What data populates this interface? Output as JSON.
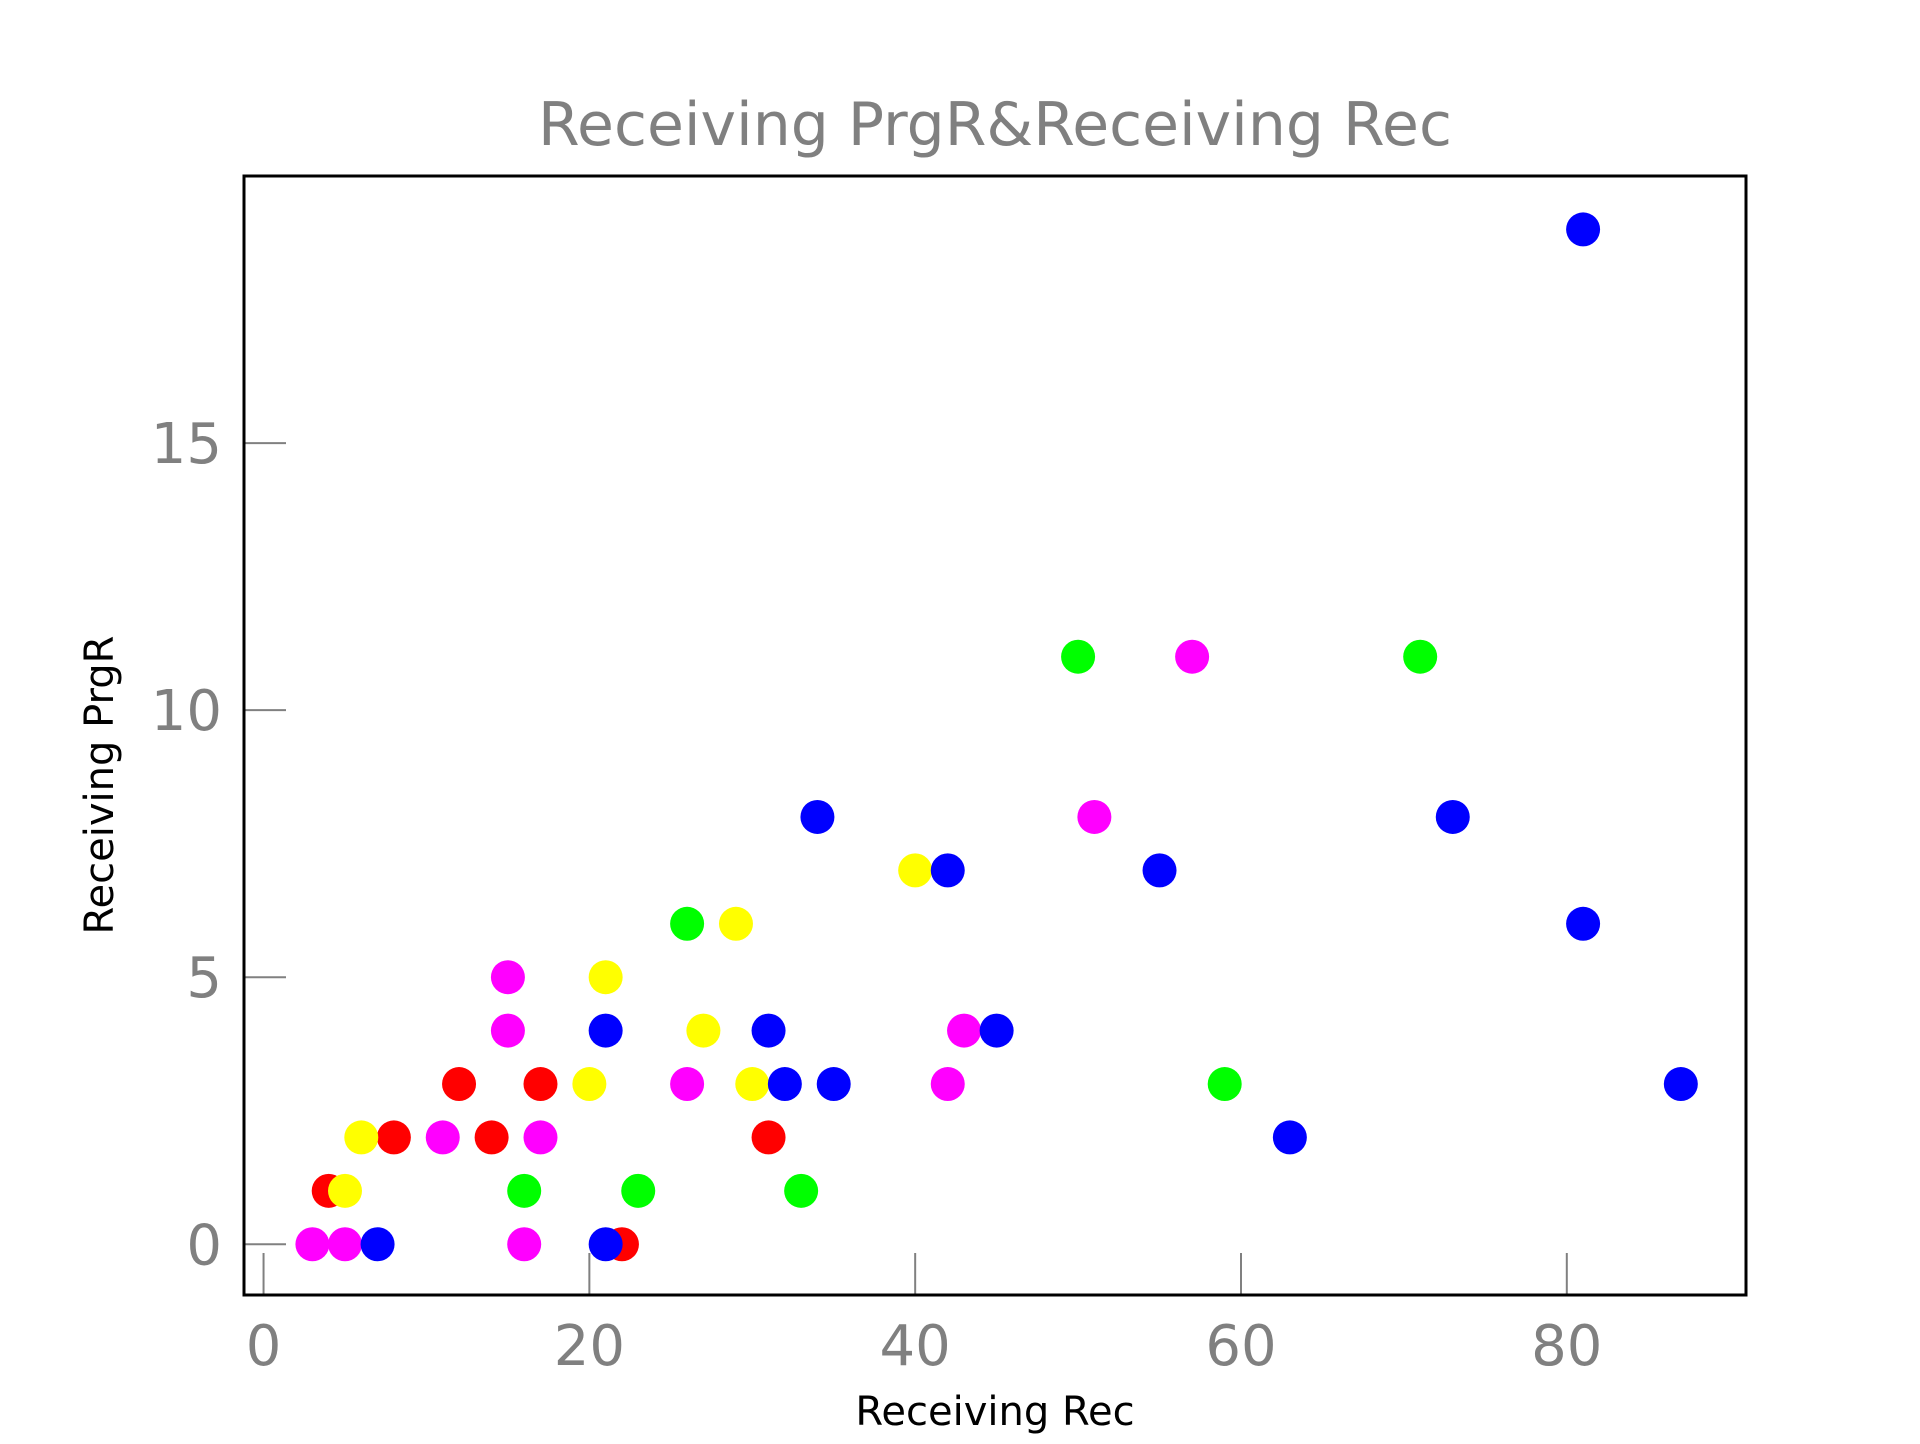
{
  "chart_data": {
    "type": "scatter",
    "title": "Receiving PrgR&Receiving Rec",
    "xlabel": "Receiving Rec",
    "ylabel": "Receiving PrgR",
    "xlim": [
      -1.2,
      91
    ],
    "ylim": [
      -0.95,
      20
    ],
    "xticks": [
      "0",
      "20",
      "40",
      "60",
      "80"
    ],
    "xtick_values": [
      0,
      20,
      40,
      60,
      80
    ],
    "yticks": [
      "0",
      "5",
      "10",
      "15"
    ],
    "ytick_values": [
      0,
      5,
      10,
      15
    ],
    "grid": false,
    "colors": {
      "red": "#ff0000",
      "yellow": "#ffff00",
      "magenta": "#ff00ff",
      "green": "#00ff00",
      "blue": "#0000ff",
      "tick_label": "#808080",
      "title": "#808080",
      "axis_label": "#000000",
      "frame": "#000000"
    },
    "series": [
      {
        "color": "#ff0000",
        "points": [
          [
            4,
            1
          ],
          [
            8,
            2
          ],
          [
            12,
            3
          ],
          [
            14,
            2
          ],
          [
            17,
            3
          ],
          [
            22,
            0
          ],
          [
            31,
            2
          ]
        ]
      },
      {
        "color": "#ffff00",
        "points": [
          [
            5,
            1
          ],
          [
            6,
            2
          ],
          [
            20,
            3
          ],
          [
            21,
            5
          ],
          [
            27,
            4
          ],
          [
            29,
            6
          ],
          [
            30,
            3
          ],
          [
            40,
            7
          ]
        ]
      },
      {
        "color": "#ff00ff",
        "points": [
          [
            3,
            0
          ],
          [
            5,
            0
          ],
          [
            11,
            2
          ],
          [
            15,
            5
          ],
          [
            15,
            4
          ],
          [
            16,
            0
          ],
          [
            17,
            2
          ],
          [
            26,
            3
          ],
          [
            42,
            3
          ],
          [
            43,
            4
          ],
          [
            51,
            8
          ],
          [
            57,
            11
          ]
        ]
      },
      {
        "color": "#00ff00",
        "points": [
          [
            16,
            1
          ],
          [
            23,
            1
          ],
          [
            26,
            6
          ],
          [
            33,
            1
          ],
          [
            50,
            11
          ],
          [
            59,
            3
          ],
          [
            71,
            11
          ]
        ]
      },
      {
        "color": "#0000ff",
        "points": [
          [
            7,
            0
          ],
          [
            21,
            4
          ],
          [
            21,
            0
          ],
          [
            31,
            4
          ],
          [
            32,
            3
          ],
          [
            34,
            8
          ],
          [
            35,
            3
          ],
          [
            42,
            7
          ],
          [
            45,
            4
          ],
          [
            55,
            7
          ],
          [
            63,
            2
          ],
          [
            73,
            8
          ],
          [
            81,
            19
          ],
          [
            81,
            6
          ],
          [
            87,
            3
          ]
        ]
      }
    ]
  }
}
